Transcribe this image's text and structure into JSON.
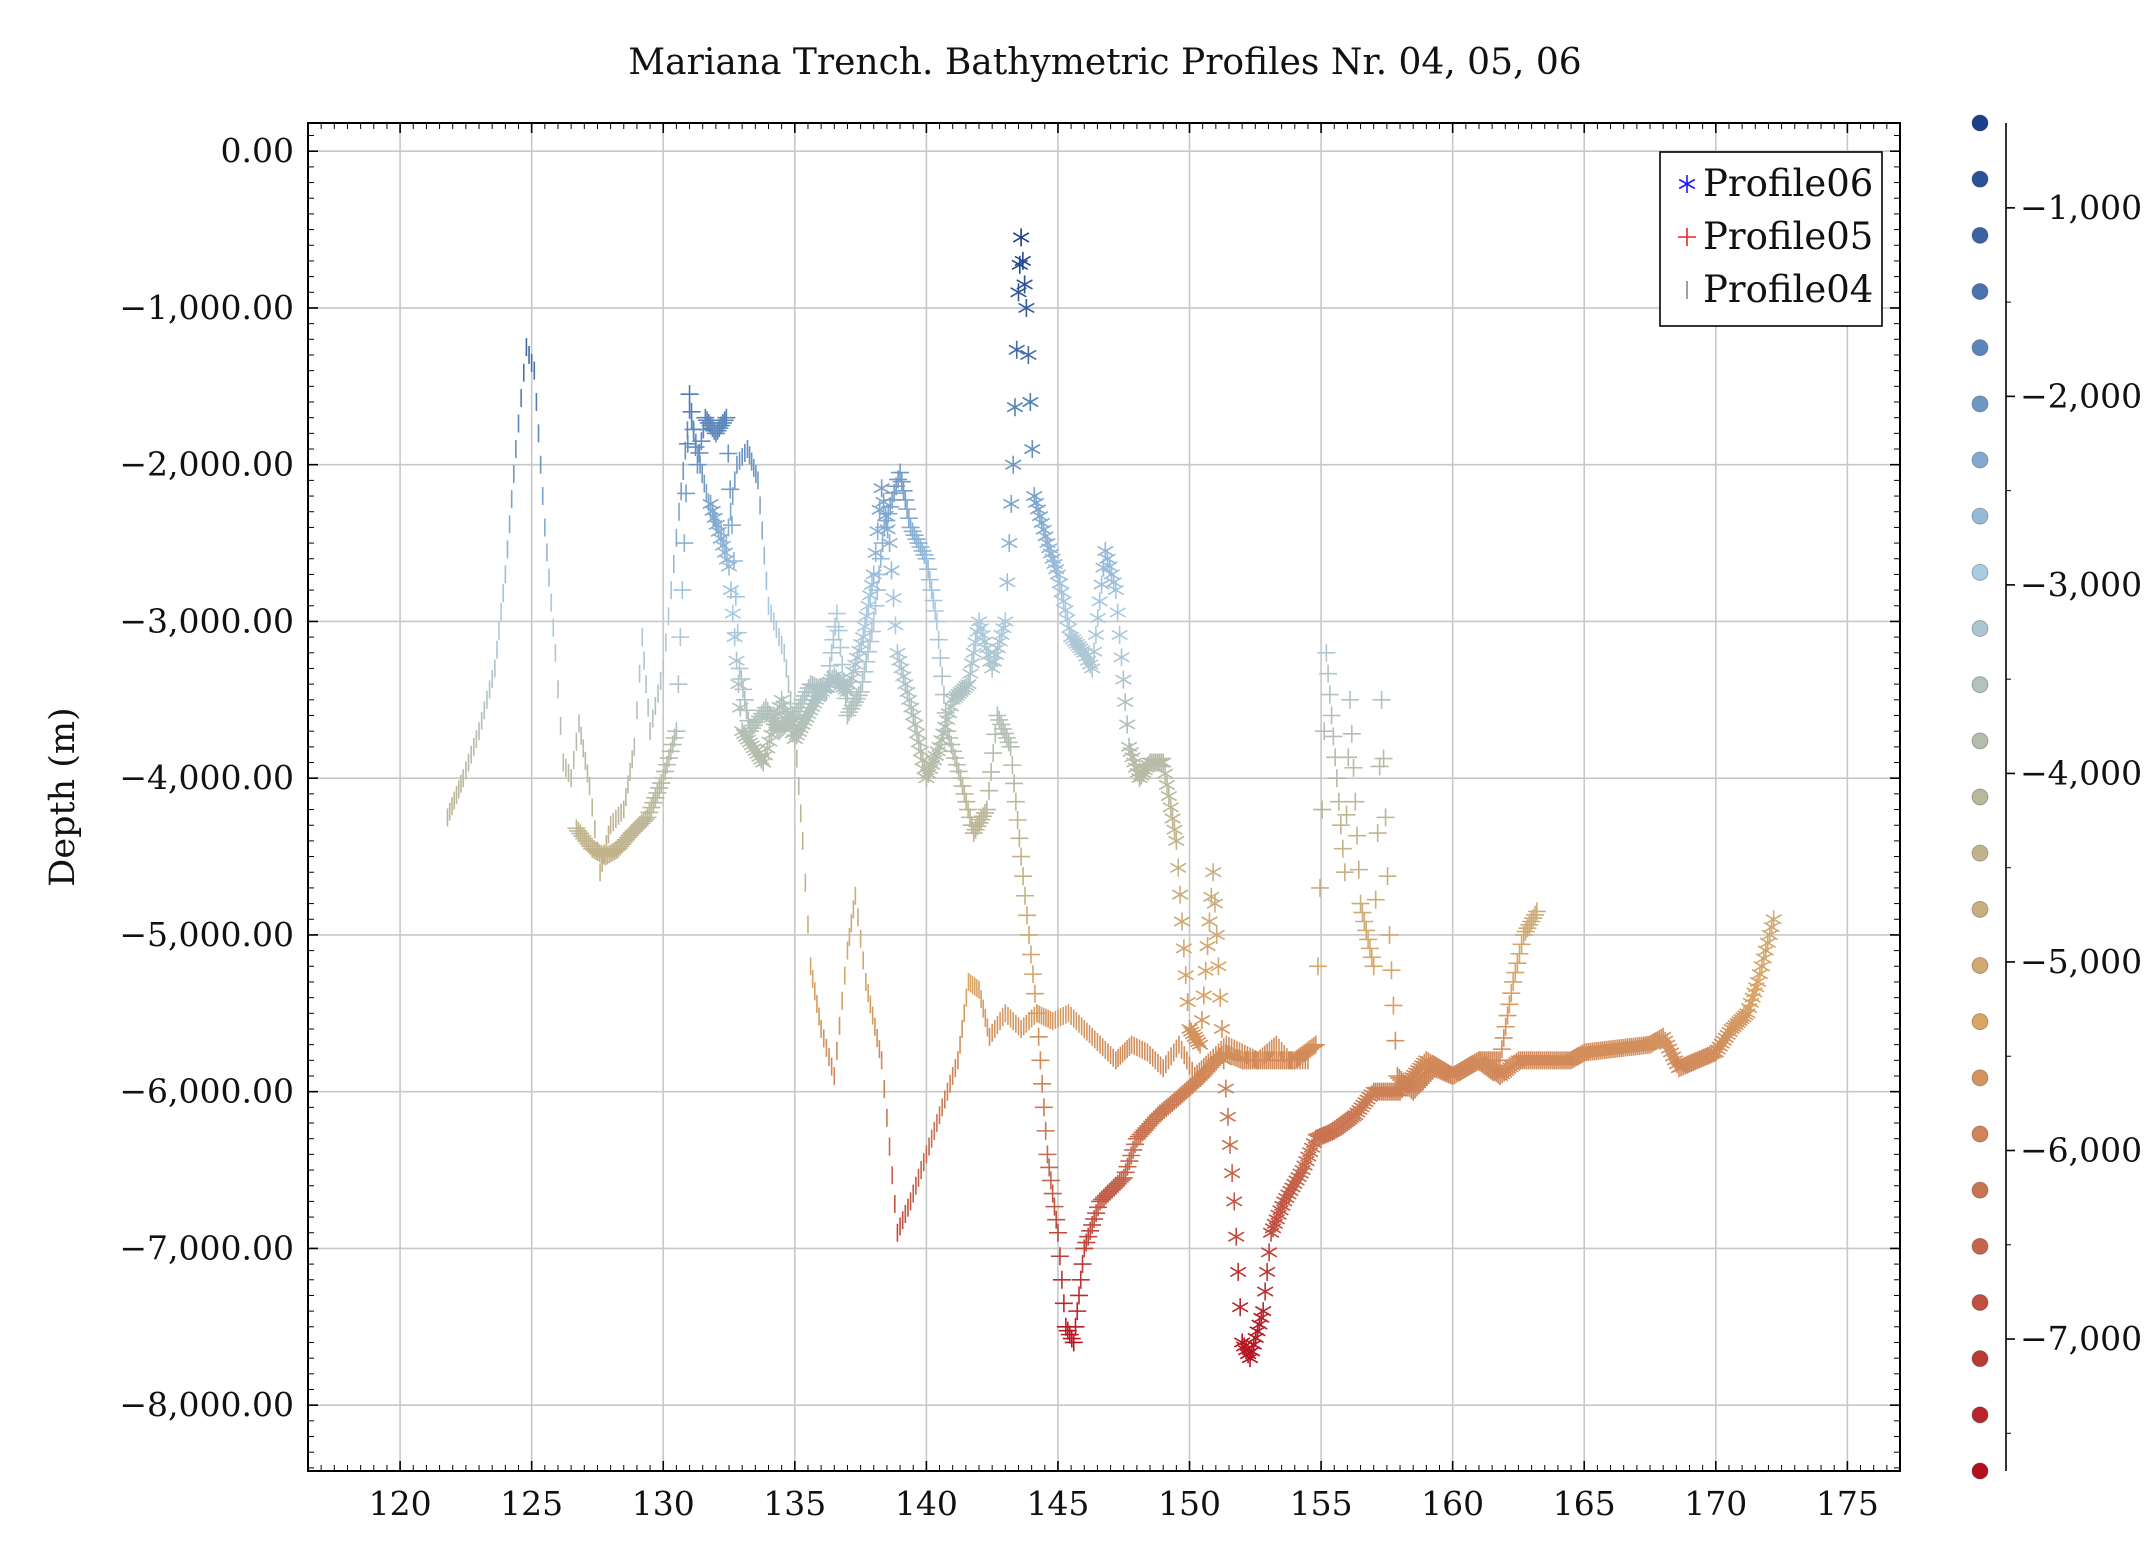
{
  "chart_data": {
    "type": "scatter",
    "title": "Mariana Trench. Bathymetric Profiles Nr. 04, 05, 06",
    "xlabel": "",
    "ylabel": "Depth (m)",
    "xlim": [
      116.5,
      177
    ],
    "ylim": [
      -8420,
      180
    ],
    "x_ticks": [
      120,
      125,
      130,
      135,
      140,
      145,
      150,
      155,
      160,
      165,
      170,
      175
    ],
    "x_tick_labels": [
      "120",
      "125",
      "130",
      "135",
      "140",
      "145",
      "150",
      "155",
      "160",
      "165",
      "170",
      "175"
    ],
    "y_ticks": [
      0,
      -1000,
      -2000,
      -3000,
      -4000,
      -5000,
      -6000,
      -7000,
      -8000
    ],
    "y_tick_labels": [
      "0.00",
      "−1,000.00",
      "−2,000.00",
      "−3,000.00",
      "−4,000.00",
      "−5,000.00",
      "−6,000.00",
      "−7,000.00",
      "−8,000.00"
    ],
    "grid": true,
    "legend_position": "top-right",
    "series": [
      {
        "name": "Profile06",
        "marker": "asterisk",
        "legend_color": "#1a1aff",
        "points": [
          [
            131.8,
            -2250
          ],
          [
            132.5,
            -2650
          ],
          [
            133.0,
            -3700
          ],
          [
            133.8,
            -3900
          ],
          [
            134.5,
            -3500
          ],
          [
            135.0,
            -3750
          ],
          [
            135.8,
            -3500
          ],
          [
            136.5,
            -3350
          ],
          [
            137.0,
            -3450
          ],
          [
            137.6,
            -3100
          ],
          [
            138.0,
            -2700
          ],
          [
            138.3,
            -2150
          ],
          [
            138.6,
            -2500
          ],
          [
            138.9,
            -3200
          ],
          [
            139.5,
            -3600
          ],
          [
            140.0,
            -4000
          ],
          [
            140.5,
            -3800
          ],
          [
            141.0,
            -3500
          ],
          [
            141.6,
            -3400
          ],
          [
            142.0,
            -3000
          ],
          [
            142.5,
            -3300
          ],
          [
            143.0,
            -3000
          ],
          [
            143.3,
            -2000
          ],
          [
            143.5,
            -900
          ],
          [
            143.6,
            -550
          ],
          [
            143.8,
            -1000
          ],
          [
            144.1,
            -2200
          ],
          [
            144.6,
            -2500
          ],
          [
            145.0,
            -2700
          ],
          [
            145.5,
            -3100
          ],
          [
            146.0,
            -3200
          ],
          [
            146.3,
            -3300
          ],
          [
            146.8,
            -2550
          ],
          [
            147.2,
            -2800
          ],
          [
            147.7,
            -3800
          ],
          [
            148.1,
            -4000
          ],
          [
            148.5,
            -3900
          ],
          [
            149.0,
            -3900
          ],
          [
            149.5,
            -4400
          ],
          [
            150.0,
            -5600
          ],
          [
            150.4,
            -5700
          ],
          [
            150.9,
            -4600
          ],
          [
            151.3,
            -5800
          ],
          [
            151.7,
            -6700
          ],
          [
            152.0,
            -7600
          ],
          [
            152.3,
            -7700
          ],
          [
            152.8,
            -7400
          ],
          [
            153.1,
            -6900
          ],
          [
            153.6,
            -6700
          ],
          [
            154.3,
            -6500
          ],
          [
            154.8,
            -6300
          ],
          [
            155.5,
            -6250
          ],
          [
            156.3,
            -6150
          ],
          [
            157.0,
            -6000
          ],
          [
            158.0,
            -6000
          ],
          [
            159.0,
            -5800
          ],
          [
            160.0,
            -5900
          ],
          [
            161.0,
            -5800
          ],
          [
            161.8,
            -5900
          ],
          [
            162.5,
            -5800
          ],
          [
            163.5,
            -5800
          ],
          [
            164.5,
            -5800
          ],
          [
            165.0,
            -5750
          ],
          [
            167.5,
            -5700
          ],
          [
            168.0,
            -5650
          ],
          [
            168.6,
            -5850
          ],
          [
            170.0,
            -5750
          ],
          [
            170.6,
            -5600
          ],
          [
            171.2,
            -5500
          ],
          [
            171.6,
            -5300
          ],
          [
            172.2,
            -4900
          ]
        ]
      },
      {
        "name": "Profile05",
        "marker": "plus",
        "legend_color": "#e8262a",
        "points": [
          [
            126.7,
            -4320
          ],
          [
            127.3,
            -4450
          ],
          [
            127.8,
            -4500
          ],
          [
            128.3,
            -4450
          ],
          [
            128.8,
            -4350
          ],
          [
            129.4,
            -4250
          ],
          [
            130.0,
            -4000
          ],
          [
            130.5,
            -3700
          ],
          [
            130.8,
            -2500
          ],
          [
            131.0,
            -1550
          ],
          [
            131.3,
            -2000
          ],
          [
            131.6,
            -1700
          ],
          [
            132.0,
            -1800
          ],
          [
            132.4,
            -1700
          ],
          [
            132.9,
            -3300
          ],
          [
            133.3,
            -3700
          ],
          [
            133.9,
            -3550
          ],
          [
            134.4,
            -3700
          ],
          [
            135.0,
            -3600
          ],
          [
            135.6,
            -3400
          ],
          [
            136.2,
            -3450
          ],
          [
            136.6,
            -2950
          ],
          [
            137.0,
            -3600
          ],
          [
            137.5,
            -3450
          ],
          [
            138.0,
            -3000
          ],
          [
            138.4,
            -2400
          ],
          [
            139.0,
            -2050
          ],
          [
            139.4,
            -2400
          ],
          [
            140.0,
            -2600
          ],
          [
            140.4,
            -3000
          ],
          [
            140.8,
            -3700
          ],
          [
            141.3,
            -4000
          ],
          [
            141.8,
            -4350
          ],
          [
            142.3,
            -4200
          ],
          [
            142.7,
            -3600
          ],
          [
            143.2,
            -3800
          ],
          [
            143.6,
            -4500
          ],
          [
            144.2,
            -5500
          ],
          [
            144.6,
            -6400
          ],
          [
            145.0,
            -6900
          ],
          [
            145.3,
            -7500
          ],
          [
            145.6,
            -7600
          ],
          [
            146.0,
            -7000
          ],
          [
            146.6,
            -6700
          ],
          [
            147.5,
            -6550
          ],
          [
            148.0,
            -6300
          ],
          [
            148.8,
            -6150
          ],
          [
            149.5,
            -6050
          ],
          [
            150.5,
            -5900
          ],
          [
            151.3,
            -5750
          ],
          [
            152.0,
            -5800
          ],
          [
            153.0,
            -5800
          ],
          [
            154.0,
            -5800
          ],
          [
            154.8,
            -5700
          ],
          [
            155.2,
            -3200
          ],
          [
            155.6,
            -4000
          ],
          [
            155.9,
            -4600
          ],
          [
            156.1,
            -3500
          ],
          [
            156.5,
            -4800
          ],
          [
            157.0,
            -5200
          ],
          [
            157.3,
            -3500
          ],
          [
            157.6,
            -5000
          ],
          [
            157.9,
            -5900
          ],
          [
            158.5,
            -6000
          ],
          [
            159.3,
            -5850
          ],
          [
            160.0,
            -5900
          ],
          [
            161.0,
            -5800
          ],
          [
            161.8,
            -5800
          ],
          [
            162.3,
            -5300
          ],
          [
            162.7,
            -5000
          ],
          [
            163.2,
            -4850
          ]
        ]
      },
      {
        "name": "Profile04",
        "marker": "vbar",
        "legend_color": "#8a8a7a",
        "points": [
          [
            121.8,
            -4250
          ],
          [
            122.4,
            -4000
          ],
          [
            123.0,
            -3700
          ],
          [
            123.6,
            -3300
          ],
          [
            124.0,
            -2700
          ],
          [
            124.4,
            -1900
          ],
          [
            124.8,
            -1250
          ],
          [
            125.1,
            -1400
          ],
          [
            125.5,
            -2400
          ],
          [
            125.9,
            -3200
          ],
          [
            126.2,
            -3900
          ],
          [
            126.5,
            -4000
          ],
          [
            126.8,
            -3650
          ],
          [
            127.2,
            -4050
          ],
          [
            127.6,
            -4600
          ],
          [
            128.0,
            -4300
          ],
          [
            128.5,
            -4200
          ],
          [
            128.9,
            -3800
          ],
          [
            129.2,
            -3100
          ],
          [
            129.5,
            -3700
          ],
          [
            130.0,
            -3300
          ],
          [
            130.6,
            -2300
          ],
          [
            131.0,
            -1650
          ],
          [
            131.4,
            -2000
          ],
          [
            131.8,
            -2300
          ],
          [
            132.4,
            -2500
          ],
          [
            132.8,
            -2000
          ],
          [
            133.2,
            -1900
          ],
          [
            133.6,
            -2100
          ],
          [
            134.0,
            -2900
          ],
          [
            134.6,
            -3200
          ],
          [
            135.0,
            -3700
          ],
          [
            135.3,
            -4400
          ],
          [
            135.6,
            -5200
          ],
          [
            136.0,
            -5600
          ],
          [
            136.5,
            -5900
          ],
          [
            137.0,
            -5100
          ],
          [
            137.3,
            -4750
          ],
          [
            137.7,
            -5300
          ],
          [
            138.3,
            -5800
          ],
          [
            138.9,
            -6900
          ],
          [
            139.4,
            -6700
          ],
          [
            140.0,
            -6400
          ],
          [
            140.6,
            -6100
          ],
          [
            141.2,
            -5800
          ],
          [
            141.6,
            -5300
          ],
          [
            142.0,
            -5350
          ],
          [
            142.4,
            -5650
          ],
          [
            143.0,
            -5500
          ],
          [
            143.6,
            -5600
          ],
          [
            144.2,
            -5500
          ],
          [
            144.8,
            -5550
          ],
          [
            145.4,
            -5500
          ],
          [
            146.0,
            -5600
          ],
          [
            146.6,
            -5700
          ],
          [
            147.2,
            -5800
          ],
          [
            147.8,
            -5700
          ],
          [
            148.4,
            -5750
          ],
          [
            149.0,
            -5850
          ],
          [
            149.6,
            -5700
          ],
          [
            150.2,
            -5900
          ],
          [
            150.8,
            -5800
          ],
          [
            151.4,
            -5700
          ],
          [
            152.0,
            -5750
          ],
          [
            152.6,
            -5800
          ],
          [
            153.3,
            -5700
          ],
          [
            153.8,
            -5800
          ],
          [
            154.5,
            -5800
          ]
        ]
      }
    ],
    "colorbar": {
      "ticks": [
        -1000,
        -2000,
        -3000,
        -4000,
        -5000,
        -6000,
        -7000
      ],
      "tick_labels": [
        "−1,000",
        "−2,000",
        "−3,000",
        "−4,000",
        "−5,000",
        "−6,000",
        "−7,000"
      ],
      "range": [
        -7700,
        -550
      ],
      "colormap": [
        "#1b3f8b",
        "#5b86ba",
        "#a9cbe3",
        "#b9b89a",
        "#d9a464",
        "#c5654a",
        "#b30f1f"
      ]
    }
  }
}
